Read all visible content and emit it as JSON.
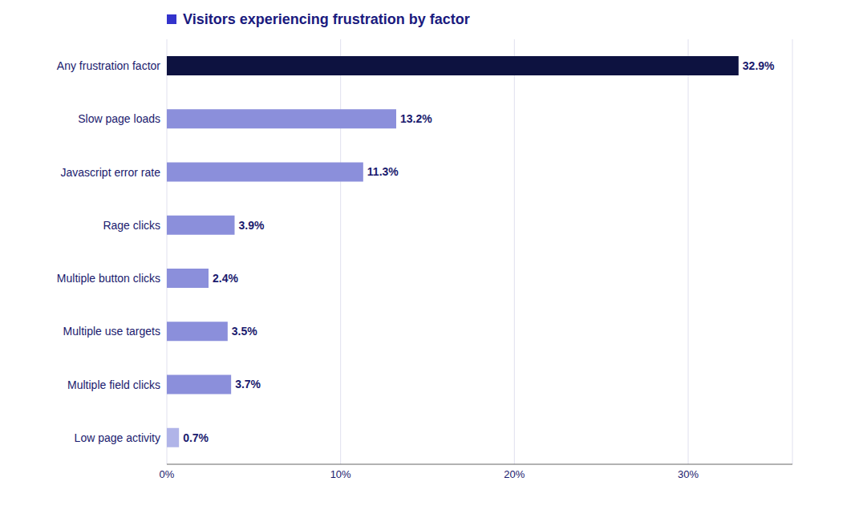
{
  "chart_data": {
    "type": "bar",
    "orientation": "horizontal",
    "title": "Visitors experiencing frustration by factor",
    "categories": [
      "Any frustration factor",
      "Slow page loads",
      "Javascript error rate",
      "Rage clicks",
      "Multiple button clicks",
      "Multiple use targets",
      "Multiple field clicks",
      "Low page activity"
    ],
    "values": [
      32.9,
      13.2,
      11.3,
      3.9,
      2.4,
      3.5,
      3.7,
      0.7
    ],
    "value_labels": [
      "32.9%",
      "13.2%",
      "11.3%",
      "3.9%",
      "2.4%",
      "3.5%",
      "3.7%",
      "0.7%"
    ],
    "colors": [
      "#0d1240",
      "#8b8fdb",
      "#8b8fdb",
      "#8b8fdb",
      "#8b8fdb",
      "#8b8fdb",
      "#8b8fdb",
      "#b0b4e8"
    ],
    "xlim": [
      0,
      36
    ],
    "xticks": [
      {
        "value": 0,
        "label": "0%"
      },
      {
        "value": 10,
        "label": "10%"
      },
      {
        "value": 20,
        "label": "20%"
      },
      {
        "value": 30,
        "label": "30%"
      }
    ],
    "grid": true,
    "data_labels": true
  }
}
